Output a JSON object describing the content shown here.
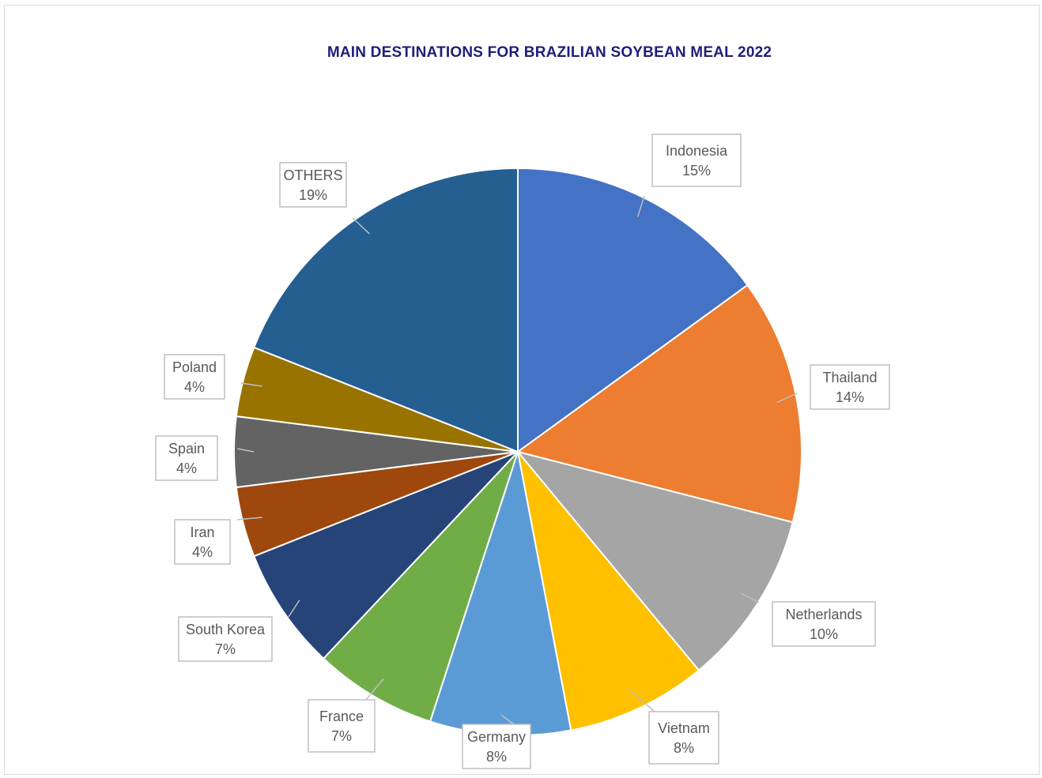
{
  "chart_data": {
    "type": "pie",
    "title": "MAIN DESTINATIONS FOR BRAZILIAN SOYBEAN MEAL 2022",
    "slices": [
      {
        "label": "Indonesia",
        "value": 15,
        "display": "15%",
        "color": "#4472c4"
      },
      {
        "label": "Thailand",
        "value": 14,
        "display": "14%",
        "color": "#ed7d31"
      },
      {
        "label": "Netherlands",
        "value": 10,
        "display": "10%",
        "color": "#a5a5a5"
      },
      {
        "label": "Vietnam",
        "value": 8,
        "display": "8%",
        "color": "#ffc000"
      },
      {
        "label": "Germany",
        "value": 8,
        "display": "8%",
        "color": "#5b9bd5"
      },
      {
        "label": "France",
        "value": 7,
        "display": "7%",
        "color": "#70ad47"
      },
      {
        "label": "South Korea",
        "value": 7,
        "display": "7%",
        "color": "#264478"
      },
      {
        "label": "Iran",
        "value": 4,
        "display": "4%",
        "color": "#9e480e"
      },
      {
        "label": "Spain",
        "value": 4,
        "display": "4%",
        "color": "#636363"
      },
      {
        "label": "Poland",
        "value": 4,
        "display": "4%",
        "color": "#997300"
      },
      {
        "label": "OTHERS",
        "value": 19,
        "display": "19%",
        "color": "#255e91"
      }
    ],
    "start_angle": "12 o'clock",
    "direction": "clockwise",
    "data_labels": "category name and percentage, outside with leader lines",
    "legend": "none"
  }
}
